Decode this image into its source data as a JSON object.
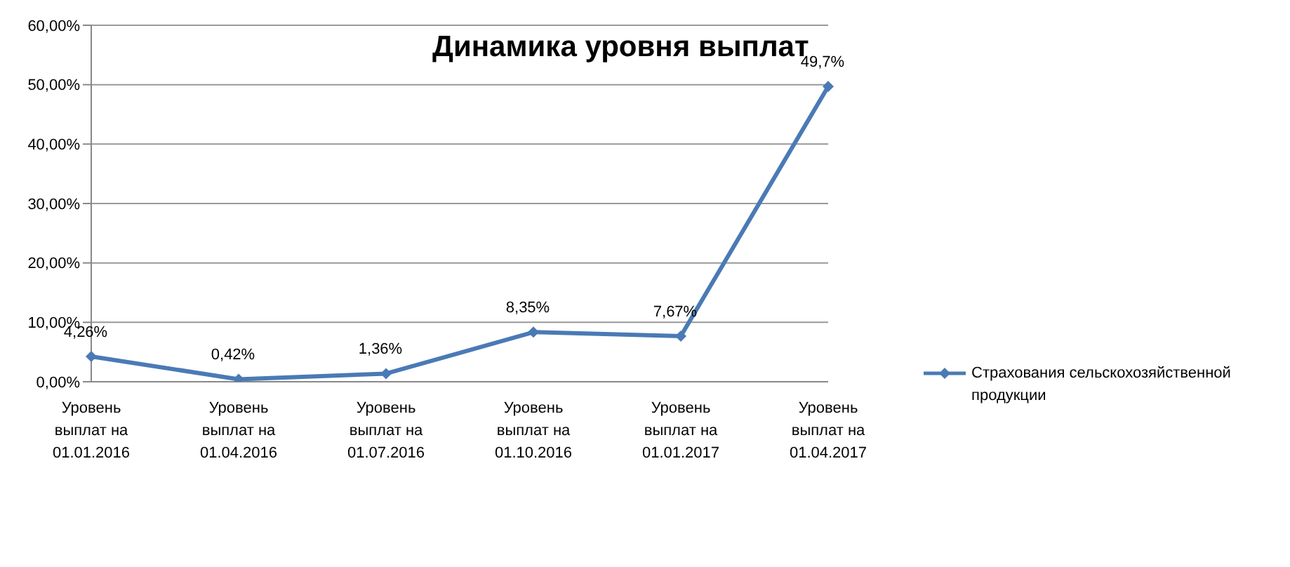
{
  "chart_data": {
    "type": "line",
    "title": "Динамика уровня выплат",
    "categories": [
      "Уровень выплат на 01.01.2016",
      "Уровень выплат на 01.04.2016",
      "Уровень выплат на 01.07.2016",
      "Уровень выплат на 01.10.2016",
      "Уровень выплат на 01.01.2017",
      "Уровень выплат на 01.04.2017"
    ],
    "series": [
      {
        "name": "Страхования сельскохозяйственной продукции",
        "color": "#4a7ab5",
        "values": [
          4.26,
          0.42,
          1.36,
          8.35,
          7.67,
          49.7
        ],
        "value_labels": [
          "4,26%",
          "0,42%",
          "1,36%",
          "8,35%",
          "7,67%",
          "49,7%"
        ]
      }
    ],
    "ylim": [
      0,
      60
    ],
    "yticks": [
      {
        "value": 0,
        "label": "0,00%"
      },
      {
        "value": 10,
        "label": "10,00%"
      },
      {
        "value": 20,
        "label": "20,00%"
      },
      {
        "value": 30,
        "label": "30,00%"
      },
      {
        "value": 40,
        "label": "40,00%"
      },
      {
        "value": 50,
        "label": "50,00%"
      },
      {
        "value": 60,
        "label": "60,00%"
      }
    ],
    "grid": "y",
    "legend": "right",
    "marker": "diamond",
    "line_style": "solid"
  }
}
